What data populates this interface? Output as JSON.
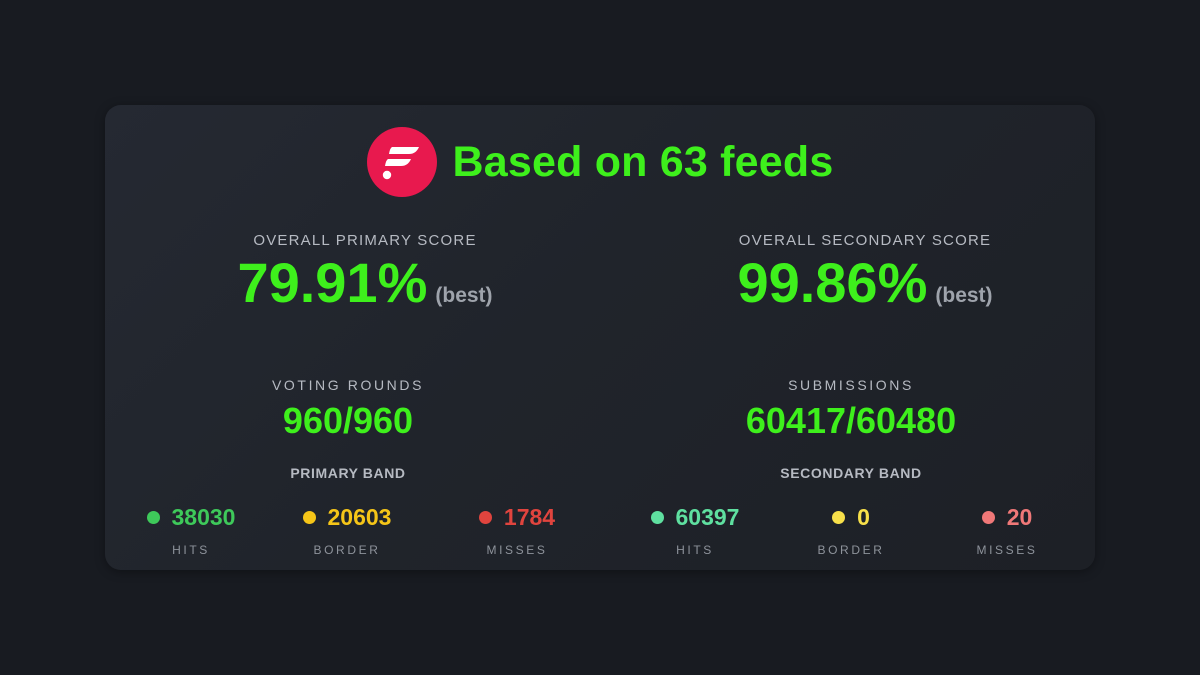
{
  "header": {
    "title": "Based on 63 feeds",
    "logo_icon": "flare-logo-icon",
    "logo_color": "#e8194e"
  },
  "primary_score": {
    "label": "OVERALL PRIMARY SCORE",
    "value": "79.91%",
    "qualifier": "(best)"
  },
  "secondary_score": {
    "label": "OVERALL SECONDARY SCORE",
    "value": "99.86%",
    "qualifier": "(best)"
  },
  "voting_rounds": {
    "label": "VOTING ROUNDS",
    "value": "960/960"
  },
  "submissions": {
    "label": "SUBMISSIONS",
    "value": "60417/60480"
  },
  "primary_band": {
    "label": "PRIMARY BAND",
    "hits": {
      "value": "38030",
      "label": "HITS",
      "color": "#3ec95a"
    },
    "border": {
      "value": "20603",
      "label": "BORDER",
      "color": "#f5c518"
    },
    "misses": {
      "value": "1784",
      "label": "MISSES",
      "color": "#e0443e"
    }
  },
  "secondary_band": {
    "label": "SECONDARY BAND",
    "hits": {
      "value": "60397",
      "label": "HITS",
      "color": "#5fe0a0"
    },
    "border": {
      "value": "0",
      "label": "BORDER",
      "color": "#f7e04a"
    },
    "misses": {
      "value": "20",
      "label": "MISSES",
      "color": "#f07878"
    }
  },
  "colors": {
    "accent": "#3ef01c",
    "background": "#181b21",
    "card": "#22262d"
  }
}
